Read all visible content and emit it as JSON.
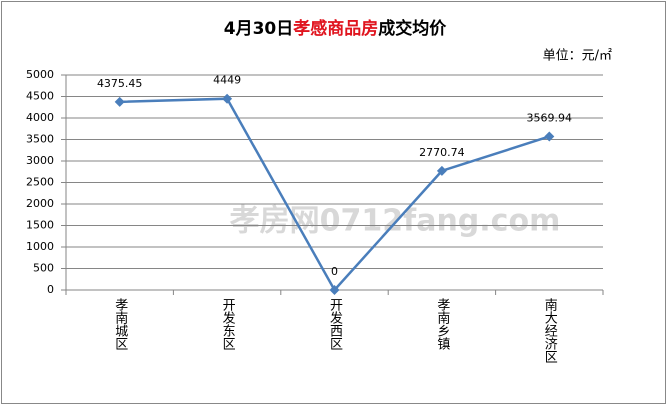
{
  "chart_data": {
    "type": "line",
    "title": [
      {
        "text": "4月30日",
        "color": "#000000"
      },
      {
        "text": "孝感商品房",
        "color": "#e0141e"
      },
      {
        "text": "成交均价",
        "color": "#000000"
      }
    ],
    "unit_label": "单位：元/㎡",
    "watermark": "孝房网0712fang.com",
    "categories": [
      "孝南城区",
      "开发东区",
      "开发西区",
      "孝南乡镇",
      "南大经济区"
    ],
    "values": [
      4375.45,
      4449,
      0,
      2770.74,
      3569.94
    ],
    "color": "#4a7ebb",
    "data_labels": true,
    "ylim": [
      0,
      5000
    ],
    "yticks": [
      0,
      500,
      1000,
      1500,
      2000,
      2500,
      3000,
      3500,
      4000,
      4500,
      5000
    ],
    "grid": true
  }
}
